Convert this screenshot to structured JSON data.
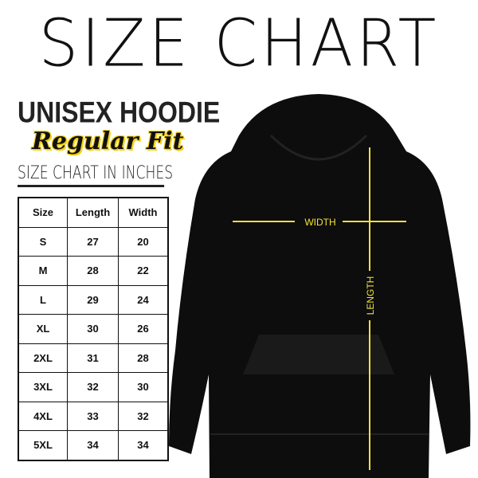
{
  "title": "SIZE CHART",
  "product": "UNISEX HOODIE",
  "fit": "Regular Fit",
  "unit_caption": "SIZE CHART IN INCHES",
  "table": {
    "headers": [
      "Size",
      "Length",
      "Width"
    ],
    "rows": [
      [
        "S",
        "27",
        "20"
      ],
      [
        "M",
        "28",
        "22"
      ],
      [
        "L",
        "29",
        "24"
      ],
      [
        "XL",
        "30",
        "26"
      ],
      [
        "2XL",
        "31",
        "28"
      ],
      [
        "3XL",
        "32",
        "30"
      ],
      [
        "4XL",
        "33",
        "32"
      ],
      [
        "5XL",
        "34",
        "34"
      ]
    ]
  },
  "diagram": {
    "width_label": "WIDTH",
    "length_label": "LENGTH",
    "line_color": "#f2e237",
    "garment_color": "#0d0d0d"
  }
}
